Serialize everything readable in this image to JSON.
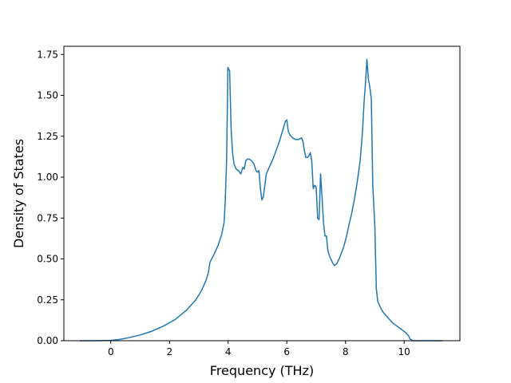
{
  "chart_data": {
    "type": "line",
    "title": "",
    "xlabel": "Frequency (THz)",
    "ylabel": "Density of States",
    "xlim": [
      -1.6,
      11.9
    ],
    "ylim": [
      0.0,
      1.8
    ],
    "xticks": [
      0,
      2,
      4,
      6,
      8,
      10
    ],
    "yticks": [
      0.0,
      0.25,
      0.5,
      0.75,
      1.0,
      1.25,
      1.5,
      1.75
    ],
    "xtick_labels": [
      "0",
      "2",
      "4",
      "6",
      "8",
      "10"
    ],
    "ytick_labels": [
      "0.00",
      "0.25",
      "0.50",
      "0.75",
      "1.00",
      "1.25",
      "1.50",
      "1.75"
    ],
    "grid": false,
    "colors": {
      "line": "#1f77b4",
      "axes": "#000000",
      "background": "#ffffff"
    },
    "series": [
      {
        "x": [
          -1.05,
          -0.5,
          0.0,
          0.3,
          0.6,
          1.0,
          1.4,
          1.8,
          2.2,
          2.6,
          2.9,
          3.1,
          3.25,
          3.33,
          3.38,
          3.5,
          3.65,
          3.78,
          3.86,
          3.9,
          3.95,
          3.99,
          4.05,
          4.1,
          4.15,
          4.2,
          4.27,
          4.35,
          4.43,
          4.5,
          4.55,
          4.6,
          4.65,
          4.72,
          4.8,
          4.88,
          4.95,
          5.0,
          5.05,
          5.1,
          5.15,
          5.2,
          5.25,
          5.3,
          5.35,
          5.45,
          5.55,
          5.65,
          5.75,
          5.85,
          5.95,
          6.0,
          6.05,
          6.1,
          6.2,
          6.3,
          6.4,
          6.5,
          6.55,
          6.6,
          6.65,
          6.7,
          6.75,
          6.8,
          6.85,
          6.9,
          6.95,
          7.0,
          7.05,
          7.1,
          7.15,
          7.2,
          7.25,
          7.3,
          7.35,
          7.4,
          7.45,
          7.5,
          7.55,
          7.62,
          7.7,
          7.78,
          7.85,
          7.95,
          8.05,
          8.12,
          8.2,
          8.3,
          8.4,
          8.5,
          8.58,
          8.63,
          8.68,
          8.73,
          8.78,
          8.83,
          8.88,
          8.93,
          9.0,
          9.05,
          9.1,
          9.2,
          9.3,
          9.45,
          9.6,
          9.75,
          9.9,
          10.05,
          10.15,
          10.2,
          10.3,
          10.5,
          10.8,
          11.0,
          11.3
        ],
        "y": [
          0.0,
          0.0,
          0.002,
          0.008,
          0.018,
          0.035,
          0.058,
          0.09,
          0.13,
          0.19,
          0.25,
          0.31,
          0.37,
          0.42,
          0.48,
          0.52,
          0.58,
          0.65,
          0.72,
          0.85,
          1.12,
          1.67,
          1.65,
          1.3,
          1.15,
          1.08,
          1.05,
          1.04,
          1.02,
          1.06,
          1.05,
          1.1,
          1.11,
          1.11,
          1.1,
          1.08,
          1.04,
          1.03,
          1.04,
          0.93,
          0.86,
          0.88,
          0.95,
          1.02,
          1.04,
          1.08,
          1.12,
          1.17,
          1.22,
          1.28,
          1.34,
          1.35,
          1.28,
          1.26,
          1.24,
          1.23,
          1.23,
          1.24,
          1.22,
          1.16,
          1.12,
          1.12,
          1.13,
          1.15,
          1.1,
          0.93,
          0.95,
          0.94,
          0.75,
          0.74,
          1.02,
          0.88,
          0.72,
          0.64,
          0.64,
          0.55,
          0.52,
          0.5,
          0.48,
          0.46,
          0.47,
          0.5,
          0.53,
          0.58,
          0.65,
          0.71,
          0.77,
          0.86,
          0.97,
          1.1,
          1.28,
          1.45,
          1.57,
          1.72,
          1.6,
          1.55,
          1.48,
          0.95,
          0.7,
          0.32,
          0.24,
          0.2,
          0.17,
          0.14,
          0.11,
          0.09,
          0.07,
          0.05,
          0.03,
          0.01,
          0.0,
          0.0,
          0.0,
          0.0,
          0.0
        ]
      }
    ]
  }
}
